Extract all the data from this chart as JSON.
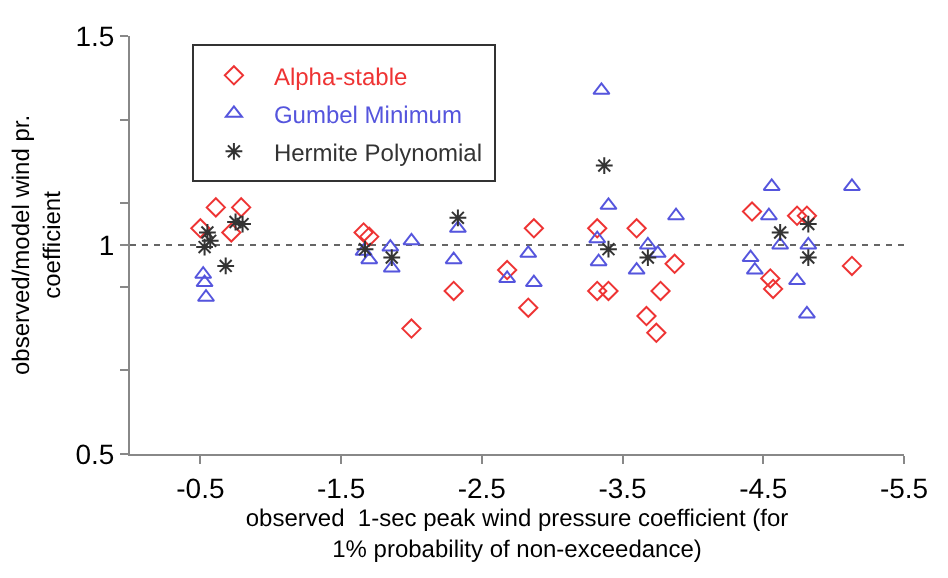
{
  "chart_data": {
    "type": "scatter",
    "xlabel": "observed  1-sec peak wind pressure coefficient (for\n1% probability of non-exceedance)",
    "ylabel": "observed/model wind pr.\ncoefficient",
    "xlim": [
      0,
      -5.5
    ],
    "xticks": [
      -0.5,
      -1.5,
      -2.5,
      -3.5,
      -4.5,
      -5.5
    ],
    "ylim": [
      0.5,
      1.5
    ],
    "yticks": [
      0.5,
      {
        "value": 0.7,
        "label": null
      },
      {
        "value": 0.9,
        "label": null
      },
      1,
      {
        "value": 1.1,
        "label": null
      },
      {
        "value": 1.3,
        "label": null
      },
      1.5
    ],
    "grid": false,
    "legend": "top left",
    "ref_lines": [
      {
        "axis": "y",
        "value": 1,
        "color": "#666666",
        "line_style": "dotted"
      }
    ],
    "series": [
      {
        "name": "Alpha-stable",
        "color": "#ee3333",
        "marker": "diamond",
        "x": [
          -0.61,
          -0.79,
          -0.5,
          -0.72,
          -1.66,
          -1.7,
          -2.0,
          -2.3,
          -2.68,
          -2.87,
          -2.83,
          -3.32,
          -3.32,
          -3.4,
          -3.6,
          -3.77,
          -3.67,
          -3.74,
          -3.87,
          -4.42,
          -4.74,
          -4.81,
          -4.55,
          -4.57,
          -5.13
        ],
        "values": [
          1.09,
          1.09,
          1.04,
          1.03,
          1.03,
          1.02,
          0.8,
          0.89,
          0.94,
          1.04,
          0.85,
          1.04,
          0.89,
          0.89,
          1.04,
          0.89,
          0.83,
          0.79,
          0.955,
          1.08,
          1.07,
          1.07,
          0.92,
          0.895,
          0.95
        ]
      },
      {
        "name": "Gumbel Minimum",
        "color": "#5555dd",
        "marker": "triangle",
        "x": [
          -0.53,
          -0.54,
          -0.52,
          -1.66,
          -1.7,
          -1.85,
          -1.86,
          -2.0,
          -2.3,
          -2.33,
          -2.68,
          -2.83,
          -2.87,
          -3.32,
          -3.33,
          -3.4,
          -3.6,
          -3.68,
          -3.75,
          -3.88,
          -3.35,
          -4.56,
          -4.54,
          -4.62,
          -4.41,
          -4.44,
          -4.74,
          -4.82,
          -4.81,
          -5.13
        ],
        "values": [
          0.91,
          0.875,
          0.93,
          0.985,
          0.965,
          0.995,
          0.945,
          1.01,
          0.965,
          1.04,
          0.92,
          0.98,
          0.91,
          1.015,
          0.96,
          1.095,
          0.94,
          1.0,
          0.98,
          1.07,
          1.37,
          1.14,
          1.07,
          1.0,
          0.97,
          0.94,
          0.915,
          1.0,
          0.835,
          1.14
        ]
      },
      {
        "name": "Hermite Polynomial",
        "color": "#333333",
        "marker": "cross",
        "x": [
          -0.55,
          -0.53,
          -0.57,
          -0.68,
          -0.75,
          -0.8,
          -1.67,
          -1.86,
          -2.33,
          -3.37,
          -3.4,
          -3.68,
          -4.62,
          -4.82,
          -4.82
        ],
        "values": [
          1.03,
          0.995,
          1.01,
          0.95,
          1.055,
          1.05,
          0.99,
          0.97,
          1.065,
          1.19,
          0.99,
          0.97,
          1.03,
          1.05,
          0.97
        ]
      }
    ]
  }
}
